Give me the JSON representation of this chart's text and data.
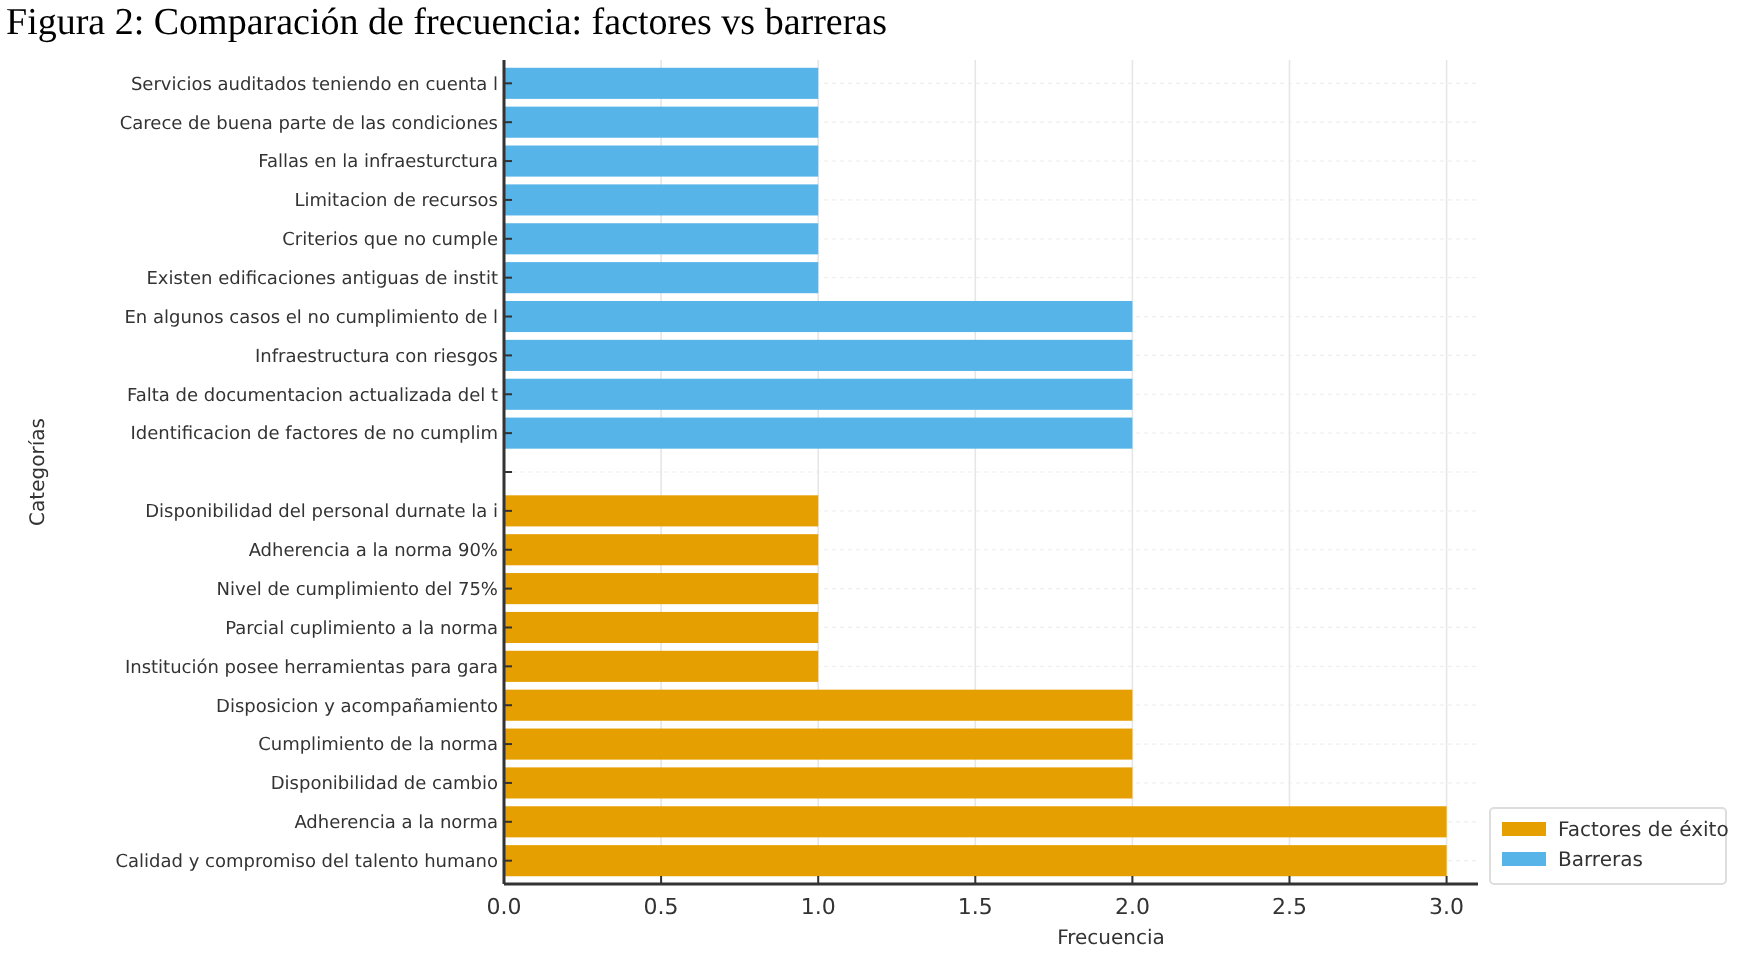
{
  "chart_data": {
    "type": "bar",
    "orientation": "horizontal",
    "title": "Figura 2: Comparación de frecuencia: factores vs barreras",
    "xlabel": "Frecuencia",
    "ylabel": "Categorías",
    "categories": [
      "Servicios auditados teniendo en cuenta l",
      "Carece de buena parte de las condiciones",
      "Fallas en la infraesturctura",
      "Limitacion de recursos",
      "Criterios que no cumple",
      "Existen edificaciones antiguas de instit",
      "En algunos casos el no cumplimiento de l",
      "Infraestructura con riesgos",
      "Falta de documentacion actualizada del t",
      "Identificacion de factores de no cumplim",
      null,
      "Disponibilidad del personal durnate la i",
      "Adherencia a la norma 90%",
      "Nivel de cumplimiento del 75%",
      "Parcial cuplimiento a la norma",
      "Institución posee herramientas para gara",
      "Disposicion y acompañamiento",
      "Cumplimiento de la norma",
      "Disponibilidad de cambio",
      "Adherencia a la norma",
      "Calidad y compromiso del talento humano"
    ],
    "series": [
      {
        "name": "Factores de éxito",
        "color": "#e69f00",
        "values": [
          null,
          null,
          null,
          null,
          null,
          null,
          null,
          null,
          null,
          null,
          null,
          1,
          1,
          1,
          1,
          1,
          2,
          2,
          2,
          3,
          3
        ]
      },
      {
        "name": "Barreras",
        "color": "#56b4e9",
        "values": [
          1,
          1,
          1,
          1,
          1,
          1,
          2,
          2,
          2,
          2,
          null,
          null,
          null,
          null,
          null,
          null,
          null,
          null,
          null,
          null,
          null
        ]
      }
    ],
    "xlim": [
      0,
      3.1
    ],
    "xticks": [
      {
        "value": 0,
        "label": "0.0"
      },
      {
        "value": 0.5,
        "label": "0.5"
      },
      {
        "value": 1,
        "label": "1.0"
      },
      {
        "value": 1.5,
        "label": "1.5"
      },
      {
        "value": 2,
        "label": "2.0"
      },
      {
        "value": 2.5,
        "label": "2.5"
      },
      {
        "value": 3,
        "label": "3.0"
      }
    ],
    "grid": true,
    "legend": "bottom right"
  }
}
